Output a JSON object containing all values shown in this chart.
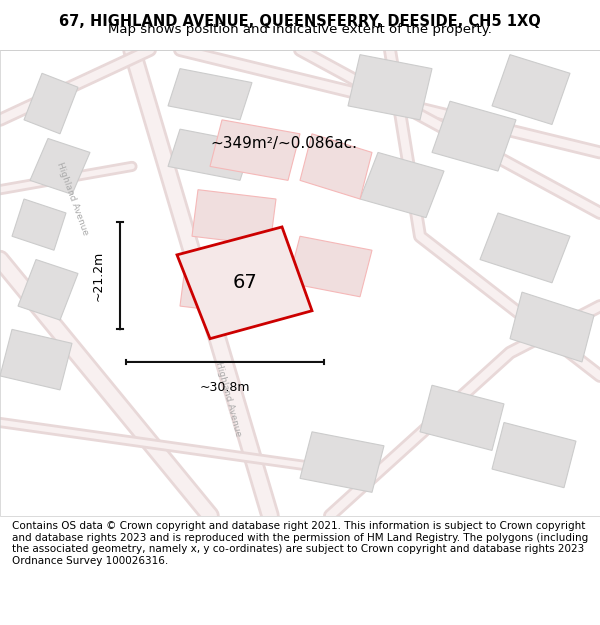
{
  "title_line1": "67, HIGHLAND AVENUE, QUEENSFERRY, DEESIDE, CH5 1XQ",
  "title_line2": "Map shows position and indicative extent of the property.",
  "area_text": "~349m²/~0.086ac.",
  "width_label": "~30.8m",
  "height_label": "~21.2m",
  "property_number": "67",
  "footer_text": "Contains OS data © Crown copyright and database right 2021. This information is subject to Crown copyright and database rights 2023 and is reproduced with the permission of HM Land Registry. The polygons (including the associated geometry, namely x, y co-ordinates) are subject to Crown copyright and database rights 2023 Ordnance Survey 100026316.",
  "bg_color": "#f5f5f5",
  "map_bg": "#f0eeee",
  "road_color": "#ffffff",
  "road_stroke": "#e8d8d8",
  "building_fill": "#e0dede",
  "building_stroke": "#cccccc",
  "highlight_fill": "#f0dede",
  "highlight_stroke": "#f5b8b8",
  "property_stroke": "#cc0000",
  "property_fill": "#f5e8e8",
  "dim_line_color": "#111111",
  "title_fontsize": 10.5,
  "subtitle_fontsize": 9.5,
  "footer_fontsize": 7.5
}
